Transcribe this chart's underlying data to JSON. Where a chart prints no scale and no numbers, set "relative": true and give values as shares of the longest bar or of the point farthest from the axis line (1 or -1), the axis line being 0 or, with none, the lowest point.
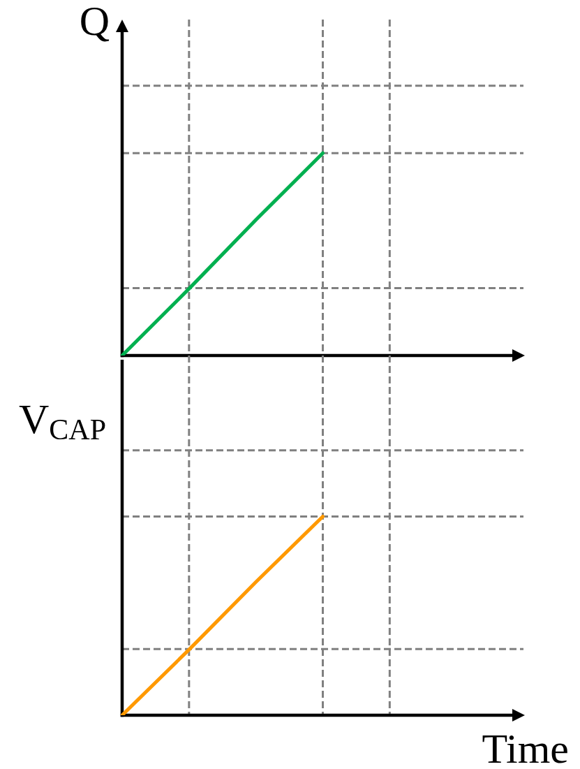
{
  "chart_data": [
    {
      "type": "line",
      "ylabel": "Q",
      "relative": true,
      "categories": [
        null,
        null,
        null,
        null,
        null,
        null,
        null
      ],
      "values": [
        0,
        0.33,
        0.67,
        1,
        null,
        null,
        null
      ],
      "color": "#00b050",
      "marker": "none",
      "tick_labels": false,
      "grid": true
    },
    {
      "type": "line",
      "ylabel": "V$_{CAP}$",
      "xlabel": "Time",
      "relative": true,
      "categories": [
        null,
        null,
        null,
        null,
        null,
        null,
        null
      ],
      "values": [
        0,
        0.33,
        0.67,
        1,
        null,
        null,
        null
      ],
      "color": "#ff9900",
      "marker": "none",
      "tick_labels": false,
      "grid": true
    }
  ]
}
